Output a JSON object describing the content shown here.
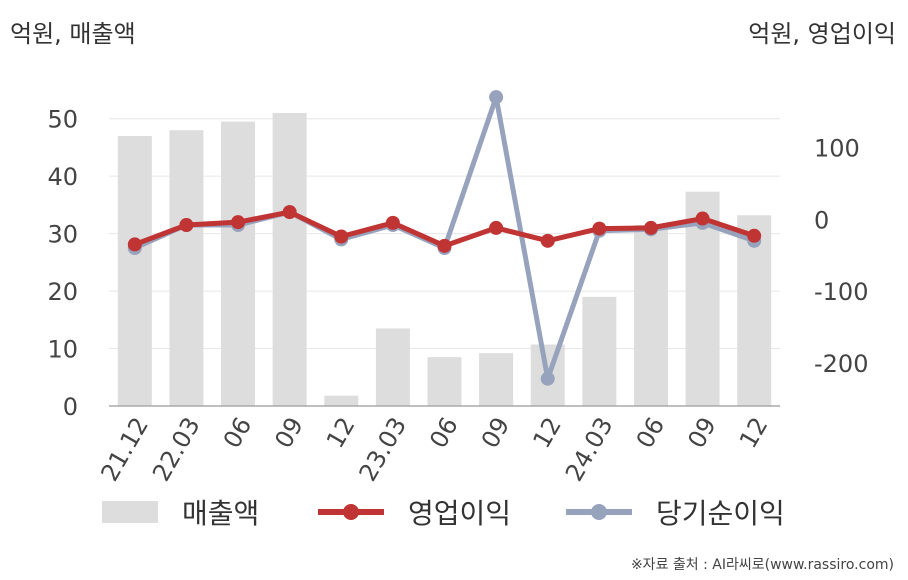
{
  "chart_data": {
    "type": "bar+line",
    "categories": [
      "21.12",
      "22.03",
      "06",
      "09",
      "12",
      "23.03",
      "06",
      "09",
      "12",
      "24.03",
      "06",
      "09",
      "12"
    ],
    "left_axis": {
      "label": "억원, 매출액",
      "ylim": [
        0,
        55
      ],
      "ticks": [
        0,
        10,
        20,
        30,
        40,
        50
      ]
    },
    "right_axis": {
      "label": "억원, 영업이익",
      "ylim": [
        -260,
        180
      ],
      "ticks": [
        100,
        0,
        -100,
        -200
      ]
    },
    "series": [
      {
        "name": "매출액",
        "kind": "bar",
        "axis": "left",
        "color": "#dddddd",
        "values": [
          47,
          48,
          49.5,
          51,
          1.8,
          13.5,
          8.5,
          9.2,
          10.7,
          19,
          31.5,
          37.3,
          33.2
        ]
      },
      {
        "name": "당기순이익",
        "kind": "line",
        "axis": "right",
        "color": "#97a3bd",
        "values": [
          -40,
          -8,
          -8,
          10,
          -28,
          -8,
          -40,
          170,
          -222,
          -16,
          -14,
          -5,
          -30
        ]
      },
      {
        "name": "영업이익",
        "kind": "line",
        "axis": "right",
        "color": "#c03434",
        "values": [
          -35,
          -8,
          -4,
          10,
          -24,
          -5,
          -37,
          -12,
          -30,
          -13,
          -12,
          1,
          -23
        ]
      }
    ],
    "grid": true,
    "legend_position": "bottom"
  },
  "legend": [
    {
      "label": "매출액",
      "kind": "bar",
      "color": "#dddddd"
    },
    {
      "label": "영업이익",
      "kind": "line",
      "color": "#c03434"
    },
    {
      "label": "당기순이익",
      "kind": "line",
      "color": "#97a3bd"
    }
  ],
  "source": "※자료 출처 : AI라씨로(www.rassiro.com)"
}
